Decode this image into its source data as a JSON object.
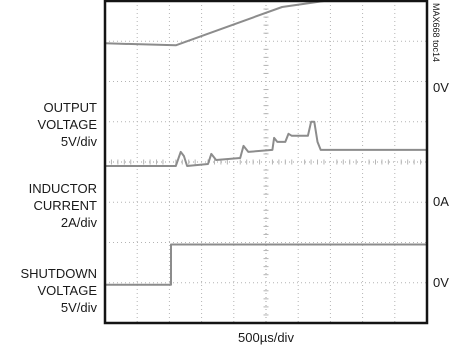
{
  "chart_data": {
    "type": "line",
    "title": "",
    "figure_tag": "MAX668 toc14",
    "xlabel": "500µs/div",
    "x_divisions": 10,
    "y_divisions": 8,
    "grid": true,
    "channels": [
      {
        "name_lines": [
          "OUTPUT",
          "VOLTAGE",
          "5V/div"
        ],
        "ground_label": "0V",
        "points": [
          [
            0,
            6.95
          ],
          [
            2.2,
            6.9
          ],
          [
            5.5,
            7.85
          ],
          [
            6.8,
            8.0
          ],
          [
            10,
            8.0
          ]
        ]
      },
      {
        "name_lines": [
          "INDUCTOR",
          "CURRENT",
          "2A/div"
        ],
        "ground_label": "0A",
        "points": [
          [
            0,
            3.9
          ],
          [
            2.2,
            3.9
          ],
          [
            2.35,
            4.25
          ],
          [
            2.45,
            4.15
          ],
          [
            2.55,
            3.9
          ],
          [
            3.2,
            3.95
          ],
          [
            3.3,
            4.2
          ],
          [
            3.45,
            4.05
          ],
          [
            4.2,
            4.1
          ],
          [
            4.3,
            4.4
          ],
          [
            4.45,
            4.25
          ],
          [
            5.2,
            4.3
          ],
          [
            5.25,
            4.6
          ],
          [
            5.35,
            4.5
          ],
          [
            5.6,
            4.5
          ],
          [
            5.7,
            4.7
          ],
          [
            5.8,
            4.65
          ],
          [
            6.3,
            4.65
          ],
          [
            6.4,
            5.0
          ],
          [
            6.5,
            5.0
          ],
          [
            6.6,
            4.5
          ],
          [
            6.7,
            4.3
          ],
          [
            10,
            4.3
          ]
        ]
      },
      {
        "name_lines": [
          "SHUTDOWN",
          "VOLTAGE",
          "5V/div"
        ],
        "ground_label": "0V",
        "points": [
          [
            0,
            0.95
          ],
          [
            2.05,
            0.95
          ],
          [
            2.05,
            1.95
          ],
          [
            10,
            1.95
          ]
        ]
      }
    ]
  },
  "colors": {
    "trace": "#8c8c8c",
    "grid": "#b4b4b4",
    "frame": "#141414"
  }
}
